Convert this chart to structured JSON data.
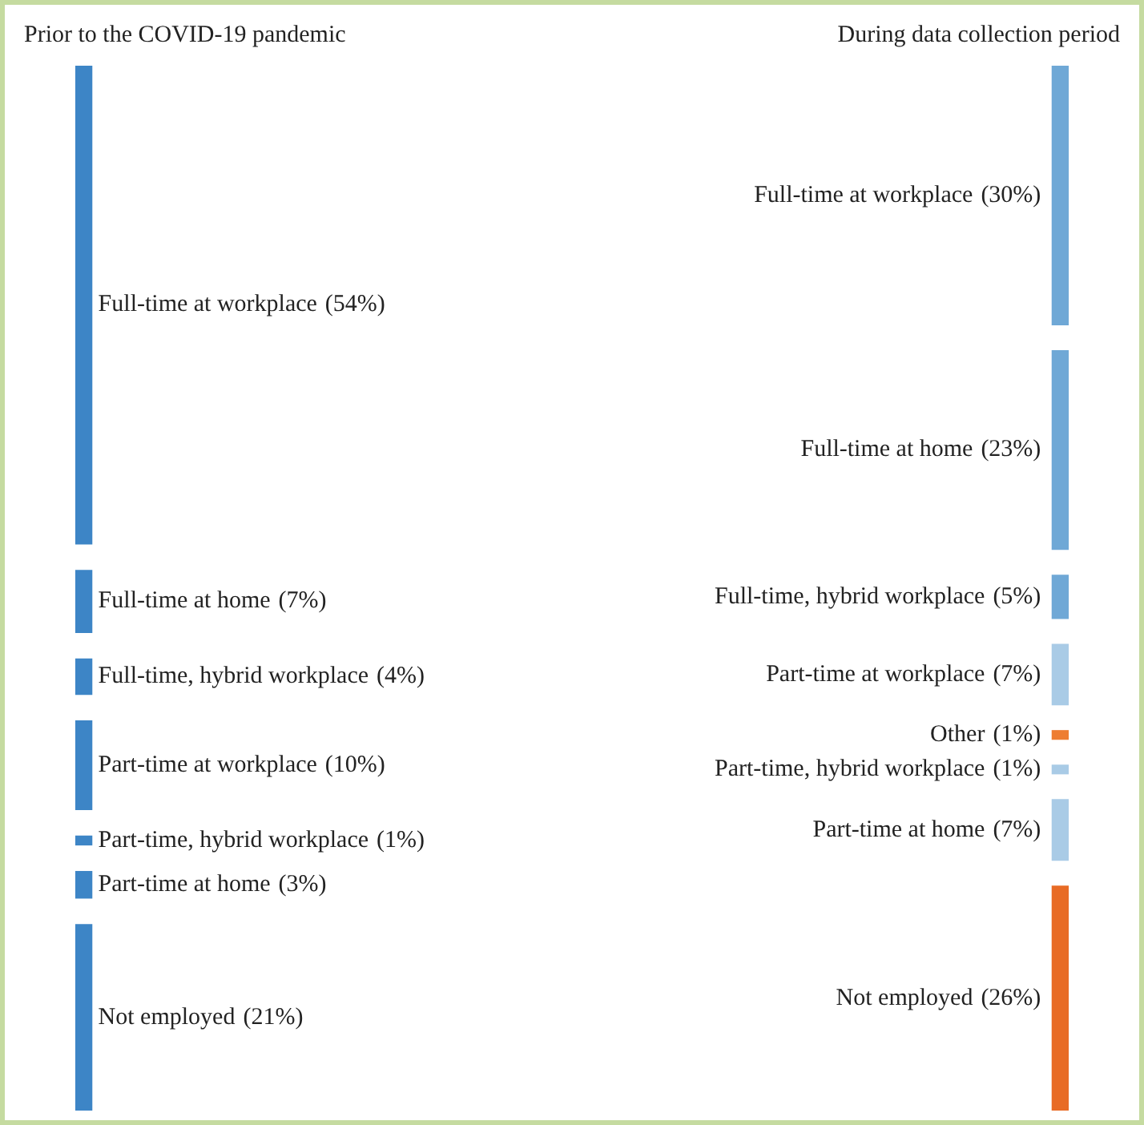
{
  "chart_data": [
    {
      "type": "other",
      "title": "Prior to the COVID-19 pandemic",
      "categories": [
        "Full-time at workplace",
        "Full-time at home",
        "Full-time, hybrid workplace",
        "Part-time at workplace",
        "Part-time, hybrid workplace",
        "Part-time at home",
        "Not employed"
      ],
      "values": [
        54,
        7,
        4,
        10,
        1,
        3,
        21
      ],
      "value_labels": [
        "(54%)",
        "(7%)",
        "(4%)",
        "(10%)",
        "(1%)",
        "(3%)",
        "(21%)"
      ],
      "colors": [
        "#3d85c6",
        "#3d85c6",
        "#3d85c6",
        "#3d85c6",
        "#3d85c6",
        "#3d85c6",
        "#3d85c6"
      ]
    },
    {
      "type": "other",
      "title": "During data collection period",
      "categories": [
        "Full-time at workplace",
        "Full-time at home",
        "Full-time, hybrid workplace",
        "Part-time at workplace",
        "Other",
        "Part-time, hybrid workplace",
        "Part-time at home",
        "Not employed"
      ],
      "values": [
        30,
        23,
        5,
        7,
        1,
        1,
        7,
        26
      ],
      "value_labels": [
        "(30%)",
        "(23%)",
        "(5%)",
        "(7%)",
        "(1%)",
        "(1%)",
        "(7%)",
        "(26%)"
      ],
      "colors": [
        "#6fa8d6",
        "#6fa8d6",
        "#6fa8d6",
        "#a9cbe6",
        "#ee7d31",
        "#a9cbe6",
        "#a9cbe6",
        "#e86b25"
      ]
    }
  ]
}
